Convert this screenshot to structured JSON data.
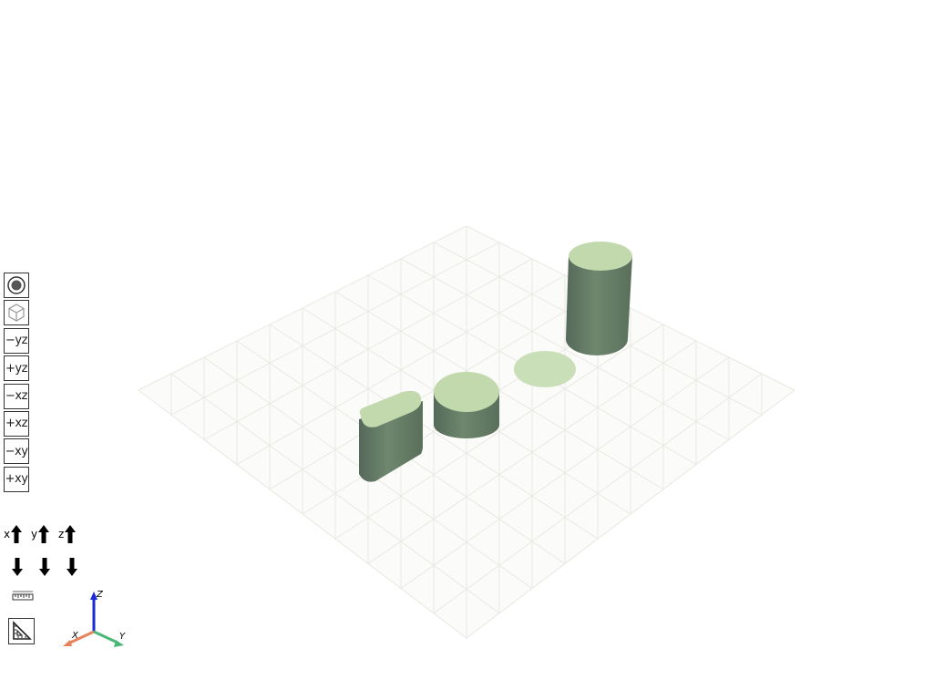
{
  "colors": {
    "cylinder_side": "#637a63",
    "cylinder_top": "#c2d9ad",
    "flat_disc": "#c9dfb8",
    "grid_line": "#e8e8e4",
    "plane": "#fbfbf9",
    "axis_x": "#e8825a",
    "axis_y": "#4cb878",
    "axis_z": "#1a2ad6"
  },
  "toolbar": {
    "buttons": [
      {
        "name": "reset-view",
        "icon": "target-icon",
        "label": ""
      },
      {
        "name": "iso-view",
        "icon": "cube-icon",
        "label": ""
      },
      {
        "name": "view-minus-yz",
        "label": "−yz"
      },
      {
        "name": "view-plus-yz",
        "label": "+yz"
      },
      {
        "name": "view-minus-xz",
        "label": "−xz"
      },
      {
        "name": "view-plus-xz",
        "label": "+xz"
      },
      {
        "name": "view-minus-xy",
        "label": "−xy"
      },
      {
        "name": "view-plus-xy",
        "label": "+xy"
      }
    ]
  },
  "rotate": {
    "x_label": "x",
    "y_label": "y",
    "z_label": "z"
  },
  "triad": {
    "x": "X",
    "y": "Y",
    "z": "Z"
  }
}
